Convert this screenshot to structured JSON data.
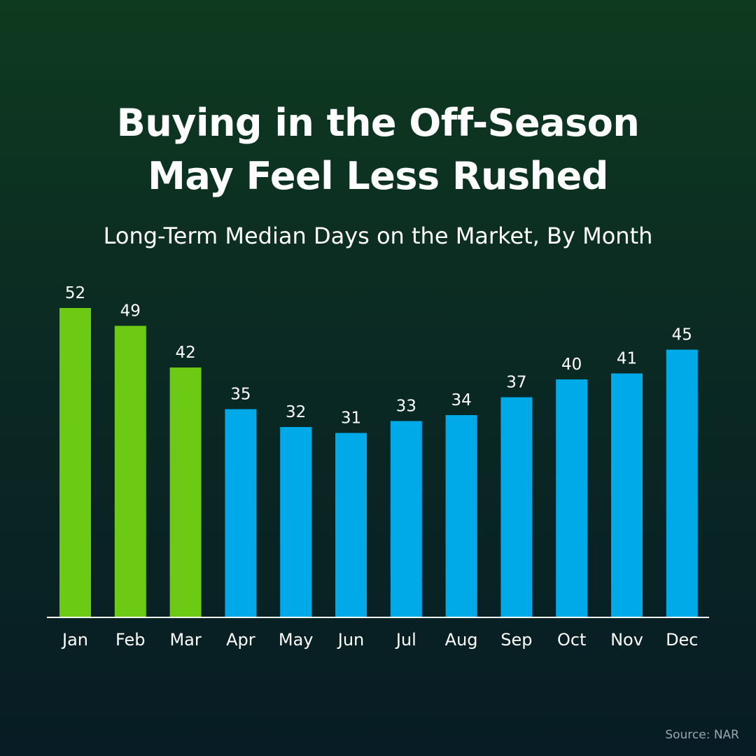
{
  "header": {
    "title_lines": [
      "Buying in the Off-Season",
      "May Feel Less Rushed"
    ],
    "subtitle": "Long-Term Median Days on the Market, By Month"
  },
  "chart_data": {
    "type": "bar",
    "categories": [
      "Jan",
      "Feb",
      "Mar",
      "Apr",
      "May",
      "Jun",
      "Jul",
      "Aug",
      "Sep",
      "Oct",
      "Nov",
      "Dec"
    ],
    "values": [
      52,
      49,
      42,
      35,
      32,
      31,
      33,
      34,
      37,
      40,
      41,
      45
    ],
    "title": "Buying in the Off-Season May Feel Less Rushed",
    "subtitle": "Long-Term Median Days on the Market, By Month",
    "xlabel": "",
    "ylabel": "",
    "ylim": [
      0,
      52
    ],
    "grid": false,
    "legend": "none",
    "highlight_categories": [
      "Jan",
      "Feb",
      "Mar"
    ],
    "colors": {
      "highlight": "#6cc914",
      "default": "#00aae8",
      "axis": "#ffffff",
      "label": "#ffffff"
    }
  },
  "footer": {
    "source": "Source: NAR"
  }
}
